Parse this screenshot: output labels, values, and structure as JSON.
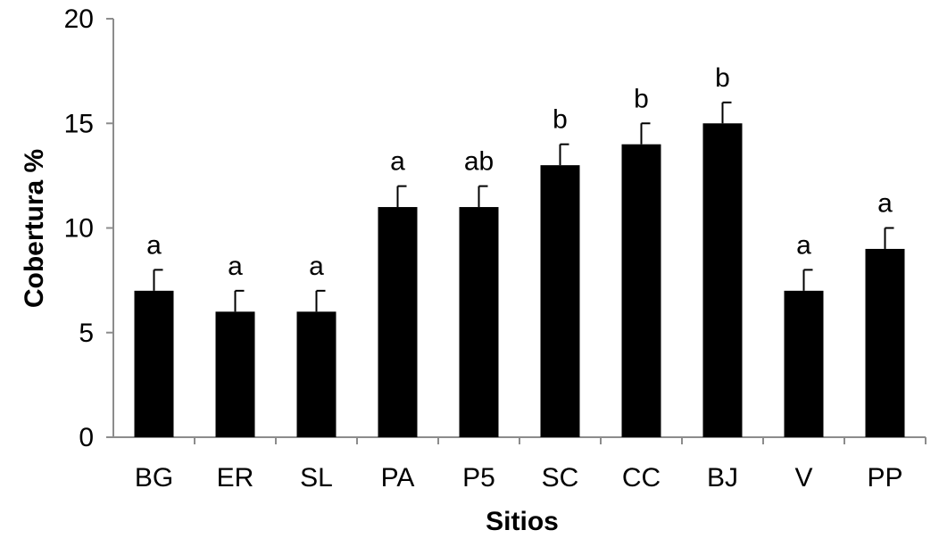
{
  "chart_data": {
    "type": "bar",
    "title": "",
    "xlabel": "Sitios",
    "ylabel": "Cobertura %",
    "ylim": [
      0,
      20
    ],
    "yticks": [
      0,
      5,
      10,
      15,
      20
    ],
    "grid": false,
    "legend": "none",
    "bar_color": "#000000",
    "categories": [
      "BG",
      "ER",
      "SL",
      "PA",
      "P5",
      "SC",
      "CC",
      "BJ",
      "V",
      "PP"
    ],
    "values": [
      7,
      6,
      6,
      11,
      11,
      13,
      14,
      15,
      7,
      9
    ],
    "error": [
      1,
      1,
      1,
      1,
      1,
      1,
      1,
      1,
      1,
      1
    ],
    "significance": [
      "a",
      "a",
      "a",
      "a",
      "ab",
      "b",
      "b",
      "b",
      "a",
      "a"
    ]
  }
}
